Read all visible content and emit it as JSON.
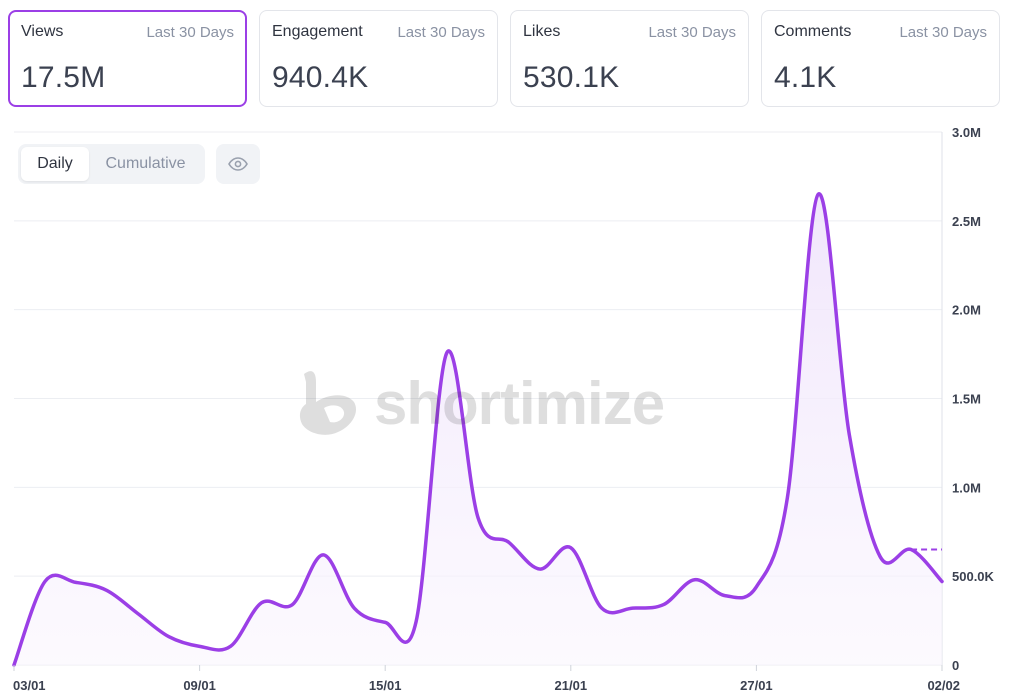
{
  "stats": [
    {
      "label": "Views",
      "period": "Last 30 Days",
      "value": "17.5M",
      "active": true
    },
    {
      "label": "Engagement",
      "period": "Last 30 Days",
      "value": "940.4K",
      "active": false
    },
    {
      "label": "Likes",
      "period": "Last 30 Days",
      "value": "530.1K",
      "active": false
    },
    {
      "label": "Comments",
      "period": "Last 30 Days",
      "value": "4.1K",
      "active": false
    }
  ],
  "toggle": {
    "daily_label": "Daily",
    "cumulative_label": "Cumulative",
    "selected": "Daily"
  },
  "icons": {
    "visibility": "eye-icon",
    "brand": "shortimize-logo-icon"
  },
  "watermark": {
    "text": "shortimize"
  },
  "colors": {
    "accent": "#9b3fe6",
    "fill": "#f3ecfb",
    "grid": "#eceef2"
  },
  "chart_data": {
    "type": "area",
    "x": [
      "03/01",
      "04/01",
      "05/01",
      "06/01",
      "07/01",
      "08/01",
      "09/01",
      "10/01",
      "11/01",
      "12/01",
      "13/01",
      "14/01",
      "15/01",
      "16/01",
      "17/01",
      "18/01",
      "19/01",
      "20/01",
      "21/01",
      "22/01",
      "23/01",
      "24/01",
      "25/01",
      "26/01",
      "27/01",
      "28/01",
      "29/01",
      "30/01",
      "31/01",
      "01/02",
      "02/02"
    ],
    "values": [
      0,
      470000,
      465000,
      420000,
      290000,
      160000,
      105000,
      105000,
      350000,
      340000,
      620000,
      320000,
      240000,
      245000,
      1760000,
      830000,
      690000,
      540000,
      660000,
      320000,
      320000,
      340000,
      480000,
      390000,
      440000,
      940000,
      2650000,
      1300000,
      610000,
      650000,
      470000
    ],
    "x_ticks": [
      "03/01",
      "09/01",
      "15/01",
      "21/01",
      "27/01",
      "02/02"
    ],
    "y_ticks": [
      "0",
      "500.0K",
      "1.0M",
      "1.5M",
      "2.0M",
      "2.5M",
      "3.0M"
    ],
    "ylim": [
      0,
      3000000
    ],
    "grid": true,
    "y_axis_position": "right",
    "last_point_projection": 650000
  }
}
